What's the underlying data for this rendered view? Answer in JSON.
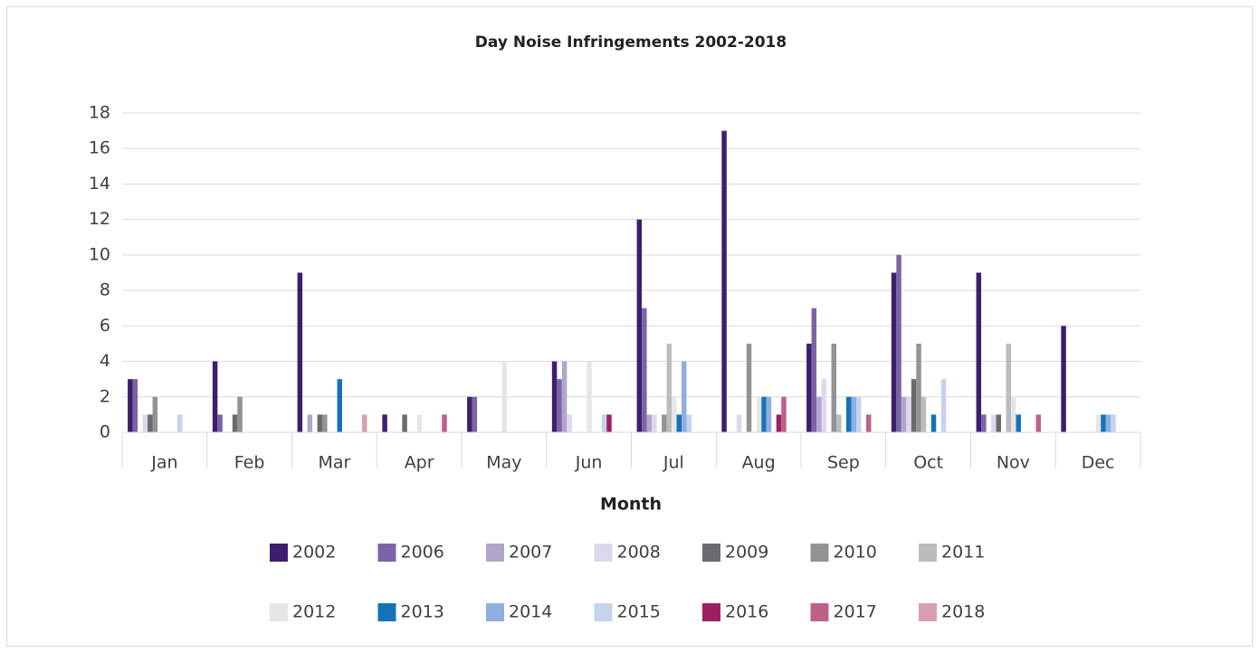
{
  "chart_data": {
    "type": "bar",
    "title": "Day Noise Infringements 2002-2018",
    "x_label": "Month",
    "categories": [
      "Jan",
      "Feb",
      "Mar",
      "Apr",
      "May",
      "Jun",
      "Jul",
      "Aug",
      "Sep",
      "Oct",
      "Nov",
      "Dec"
    ],
    "ylim": [
      0,
      18
    ],
    "yticks": [
      0,
      2,
      4,
      6,
      8,
      10,
      12,
      14,
      16,
      18
    ],
    "grid": true,
    "series": [
      {
        "name": "2002",
        "color": "#3d1e6e",
        "values": [
          3,
          4,
          9,
          1,
          2,
          4,
          12,
          17,
          5,
          9,
          9,
          6
        ]
      },
      {
        "name": "2006",
        "color": "#7b64a6",
        "values": [
          3,
          1,
          0,
          0,
          2,
          3,
          7,
          0,
          7,
          10,
          1,
          0
        ]
      },
      {
        "name": "2007",
        "color": "#b0a6cc",
        "values": [
          0,
          0,
          1,
          0,
          0,
          4,
          1,
          0,
          2,
          2,
          0,
          0
        ]
      },
      {
        "name": "2008",
        "color": "#ddd8ea",
        "values": [
          1,
          0,
          0,
          0,
          0,
          1,
          1,
          1,
          3,
          2,
          1,
          0
        ]
      },
      {
        "name": "2009",
        "color": "#6b6b6f",
        "values": [
          1,
          1,
          1,
          1,
          0,
          0,
          0,
          0,
          0,
          3,
          1,
          0
        ]
      },
      {
        "name": "2010",
        "color": "#939395",
        "values": [
          2,
          2,
          1,
          0,
          0,
          0,
          1,
          5,
          5,
          5,
          0,
          0
        ]
      },
      {
        "name": "2011",
        "color": "#bcbcbe",
        "values": [
          0,
          0,
          0,
          0,
          0,
          0,
          5,
          0,
          1,
          2,
          5,
          0
        ]
      },
      {
        "name": "2012",
        "color": "#e6e6e8",
        "values": [
          0,
          0,
          0,
          1,
          4,
          4,
          2,
          2,
          0,
          0,
          2,
          1
        ]
      },
      {
        "name": "2013",
        "color": "#1473b8",
        "values": [
          0,
          0,
          3,
          0,
          0,
          0,
          1,
          2,
          2,
          1,
          1,
          1
        ]
      },
      {
        "name": "2014",
        "color": "#90aedf",
        "values": [
          0,
          0,
          0,
          0,
          0,
          0,
          4,
          2,
          2,
          0,
          0,
          1
        ]
      },
      {
        "name": "2015",
        "color": "#c4d3ee",
        "values": [
          1,
          0,
          0,
          0,
          0,
          1,
          1,
          0,
          2,
          3,
          0,
          1
        ]
      },
      {
        "name": "2016",
        "color": "#9c1f63",
        "values": [
          0,
          0,
          0,
          0,
          0,
          1,
          0,
          1,
          0,
          0,
          0,
          0
        ]
      },
      {
        "name": "2017",
        "color": "#bd6188",
        "values": [
          0,
          0,
          0,
          1,
          0,
          0,
          0,
          2,
          1,
          0,
          1,
          0
        ]
      },
      {
        "name": "2018",
        "color": "#d69fb3",
        "values": [
          0,
          0,
          1,
          0,
          0,
          0,
          0,
          0,
          0,
          0,
          0,
          0
        ]
      }
    ]
  }
}
